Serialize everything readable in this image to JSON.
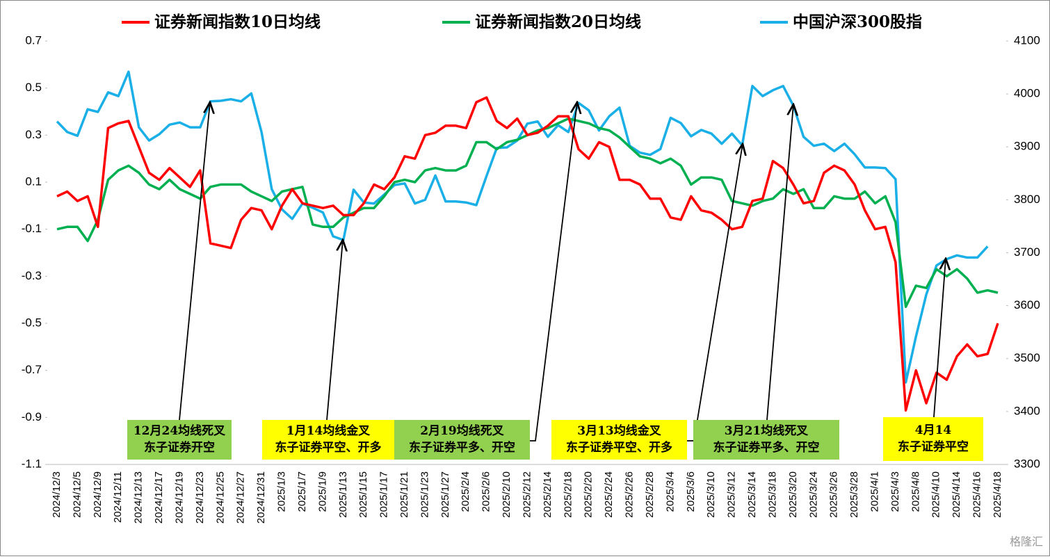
{
  "chart_data": {
    "type": "line",
    "categories": [
      "2024/12/3",
      null,
      "2024/12/5",
      null,
      "2024/12/9",
      null,
      "2024/12/11",
      null,
      "2024/12/13",
      null,
      "2024/12/17",
      null,
      "2024/12/19",
      null,
      "2024/12/23",
      null,
      "2024/12/25",
      null,
      "2024/12/27",
      null,
      "2024/12/31",
      null,
      "2025/1/3",
      null,
      "2025/1/7",
      null,
      "2025/1/9",
      null,
      "2025/1/13",
      null,
      "2025/1/15",
      null,
      "2025/1/17",
      null,
      "2025/1/21",
      null,
      "2025/1/23",
      null,
      "2025/1/27",
      null,
      "2025/2/4",
      null,
      "2025/2/6",
      null,
      "2025/2/10",
      null,
      "2025/2/12",
      null,
      "2025/2/14",
      null,
      "2025/2/18",
      null,
      "2025/2/20",
      null,
      "2025/2/24",
      null,
      "2025/2/26",
      null,
      "2025/2/28",
      null,
      "2025/3/4",
      null,
      "2025/3/6",
      null,
      "2025/3/10",
      null,
      "2025/3/12",
      null,
      "2025/3/14",
      null,
      "2025/3/18",
      null,
      "2025/3/20",
      null,
      "2025/3/24",
      null,
      "2025/3/26",
      null,
      "2025/3/28",
      null,
      "2025/4/1",
      null,
      "2025/4/3",
      null,
      "2025/4/8",
      null,
      "2025/4/10",
      null,
      "2025/4/14",
      null,
      "2025/4/16",
      null,
      "2025/4/18"
    ],
    "series": [
      {
        "name": "证券新闻指数10日均线",
        "color": "#ff0000",
        "values": [
          0.04,
          0.06,
          0.02,
          0.04,
          -0.09,
          0.33,
          0.35,
          0.36,
          0.25,
          0.14,
          0.11,
          0.16,
          0.12,
          0.08,
          0.15,
          -0.16,
          -0.17,
          -0.18,
          -0.06,
          -0.01,
          -0.02,
          -0.1,
          0.0,
          0.07,
          0.01,
          0.0,
          -0.01,
          0.0,
          -0.04,
          -0.04,
          0.01,
          0.09,
          0.07,
          0.12,
          0.21,
          0.2,
          0.3,
          0.31,
          0.34,
          0.34,
          0.33,
          0.44,
          0.46,
          0.36,
          0.33,
          0.37,
          0.3,
          0.31,
          0.34,
          0.38,
          0.38,
          0.24,
          0.2,
          0.27,
          0.25,
          0.11,
          0.11,
          0.09,
          0.03,
          0.03,
          -0.05,
          -0.06,
          0.04,
          -0.02,
          -0.03,
          -0.06,
          -0.1,
          -0.09,
          0.02,
          0.03,
          0.19,
          0.16,
          0.09,
          0.01,
          0.02,
          0.14,
          0.17,
          0.15,
          0.09,
          -0.02,
          -0.1,
          -0.09,
          -0.24,
          -0.87,
          -0.7,
          -0.84,
          -0.71,
          -0.74,
          -0.64,
          -0.59,
          -0.64,
          -0.63,
          -0.5
        ]
      },
      {
        "name": "证券新闻指数20日均线",
        "color": "#00b050",
        "values": [
          -0.1,
          -0.09,
          -0.09,
          -0.15,
          -0.06,
          0.11,
          0.15,
          0.17,
          0.14,
          0.09,
          0.07,
          0.11,
          0.07,
          0.05,
          0.03,
          0.08,
          0.09,
          0.09,
          0.09,
          0.06,
          0.04,
          0.02,
          0.06,
          0.07,
          0.08,
          -0.08,
          -0.09,
          -0.09,
          -0.05,
          -0.03,
          -0.01,
          -0.01,
          0.04,
          0.1,
          0.11,
          0.1,
          0.15,
          0.16,
          0.15,
          0.15,
          0.17,
          0.27,
          0.27,
          0.24,
          0.27,
          0.28,
          0.3,
          0.32,
          0.33,
          0.35,
          0.37,
          0.36,
          0.35,
          0.33,
          0.32,
          0.29,
          0.25,
          0.21,
          0.2,
          0.18,
          0.2,
          0.17,
          0.09,
          0.12,
          0.12,
          0.11,
          0.02,
          0.01,
          0.0,
          0.02,
          0.03,
          0.07,
          0.05,
          0.07,
          -0.01,
          -0.01,
          0.04,
          0.03,
          0.03,
          0.06,
          0.01,
          0.04,
          -0.07,
          -0.43,
          -0.34,
          -0.35,
          -0.27,
          -0.3,
          -0.27,
          -0.31,
          -0.37,
          -0.36,
          -0.37
        ]
      },
      {
        "name": "中国沪深300股指",
        "color": "#1aafe6",
        "axis": "y2",
        "values": [
          3948,
          3928,
          3921,
          3971,
          3966,
          4003,
          3996,
          4042,
          3937,
          3912,
          3924,
          3942,
          3946,
          3937,
          3937,
          3986,
          3987,
          3990,
          3986,
          4001,
          3928,
          3820,
          3782,
          3764,
          3793,
          3785,
          3776,
          3731,
          3724,
          3819,
          3795,
          3793,
          3810,
          3828,
          3831,
          3793,
          3800,
          3846,
          3797,
          3797,
          3795,
          3790,
          3845,
          3898,
          3899,
          3912,
          3944,
          3948,
          3919,
          3941,
          3928,
          3983,
          3969,
          3931,
          3958,
          3974,
          3902,
          3889,
          3885,
          3896,
          3955,
          3945,
          3920,
          3932,
          3925,
          3906,
          3925,
          3903,
          4015,
          3996,
          4007,
          4015,
          3978,
          3919,
          3902,
          3906,
          3892,
          3906,
          3886,
          3861,
          3861,
          3860,
          3839,
          3455,
          3542,
          3621,
          3676,
          3688,
          3695,
          3691,
          3691,
          3712,
          null
        ]
      }
    ],
    "ylim": [
      -1.1,
      0.7
    ],
    "yticks": [
      -1.1,
      -0.9,
      -0.7,
      -0.5,
      -0.3,
      -0.1,
      0.1,
      0.3,
      0.5,
      0.7
    ],
    "y2lim": [
      3300,
      4100
    ],
    "y2ticks": [
      3300,
      3400,
      3500,
      3600,
      3700,
      3800,
      3900,
      4000,
      4100
    ],
    "annotations": [
      {
        "lines": [
          "12月24均线死叉",
          "东子证券开空"
        ],
        "color": "#92d050"
      },
      {
        "lines": [
          "1月14均线金叉",
          "东子证券平空、开多"
        ],
        "color": "#ffff00"
      },
      {
        "lines": [
          "2月19均线死叉",
          "东子证券平多、开空"
        ],
        "color": "#92d050"
      },
      {
        "lines": [
          "3月13均线金叉",
          "东子证券平空、开多"
        ],
        "color": "#ffff00"
      },
      {
        "lines": [
          "3月21均线死叉",
          "东子证券平多、开空"
        ],
        "color": "#92d050"
      },
      {
        "lines": [
          "4月14",
          "东子证券平空"
        ],
        "color": "#ffff00"
      }
    ],
    "watermark": "格隆汇"
  }
}
